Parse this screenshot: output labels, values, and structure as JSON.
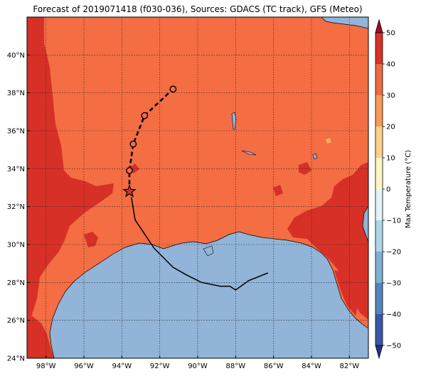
{
  "title": "Forecast of 2019071418 (f030-036), Sources: GDACS (TC track), GFS (Meteo)",
  "map": {
    "lon_range": [
      -99.0,
      -81.0
    ],
    "lat_range": [
      24.0,
      42.0
    ],
    "lon_ticks": [
      "98°W",
      "96°W",
      "94°W",
      "92°W",
      "90°W",
      "88°W",
      "86°W",
      "84°W",
      "82°W"
    ],
    "lat_ticks": [
      "24°N",
      "26°N",
      "28°N",
      "30°N",
      "32°N",
      "34°N",
      "36°N",
      "38°N",
      "40°N"
    ],
    "grid": true
  },
  "colorbar": {
    "label": "Max Temperature (°C)",
    "range": [
      -50,
      50
    ],
    "ticks": [
      "50",
      "40",
      "30",
      "20",
      "10",
      "0",
      "−10",
      "−20",
      "−30",
      "−40",
      "−50"
    ],
    "colors": [
      "#2b3190",
      "#3b57a6",
      "#5585bd",
      "#7fb0d4",
      "#aed5e8",
      "#e4f3f9",
      "#fdf6c3",
      "#fdd089",
      "#f99a58",
      "#ee6a43",
      "#d73227",
      "#a70a26"
    ],
    "extend": "both"
  },
  "colors": {
    "land_main": "#f46d43",
    "land_hot": "#d73027",
    "land_warm": "#fdae61",
    "sea": "#91b4d8",
    "track": "#000000",
    "marker_face": "#f46d43"
  },
  "chart_data": {
    "type": "map",
    "storm_track_observed": [
      {
        "lon": -86.3,
        "lat": 28.5
      },
      {
        "lon": -87.3,
        "lat": 28.1
      },
      {
        "lon": -88.0,
        "lat": 27.6
      },
      {
        "lon": -88.3,
        "lat": 27.8
      },
      {
        "lon": -88.8,
        "lat": 27.8
      },
      {
        "lon": -89.8,
        "lat": 28.0
      },
      {
        "lon": -90.6,
        "lat": 28.4
      },
      {
        "lon": -91.3,
        "lat": 28.8
      },
      {
        "lon": -91.6,
        "lat": 29.1
      },
      {
        "lon": -92.3,
        "lat": 29.8
      },
      {
        "lon": -92.9,
        "lat": 30.7
      },
      {
        "lon": -93.3,
        "lat": 31.3
      },
      {
        "lon": -93.5,
        "lat": 32.5
      }
    ],
    "current_position": {
      "lon": -93.6,
      "lat": 32.8
    },
    "forecast_track": [
      {
        "lon": -93.6,
        "lat": 32.8
      },
      {
        "lon": -93.6,
        "lat": 33.9
      },
      {
        "lon": -93.4,
        "lat": 35.3
      },
      {
        "lon": -92.8,
        "lat": 36.8
      },
      {
        "lon": -91.3,
        "lat": 38.2
      }
    ],
    "forecast_points": [
      {
        "lon": -93.6,
        "lat": 33.9
      },
      {
        "lon": -93.4,
        "lat": 35.3
      },
      {
        "lon": -92.8,
        "lat": 36.8
      },
      {
        "lon": -91.3,
        "lat": 38.2
      }
    ]
  }
}
